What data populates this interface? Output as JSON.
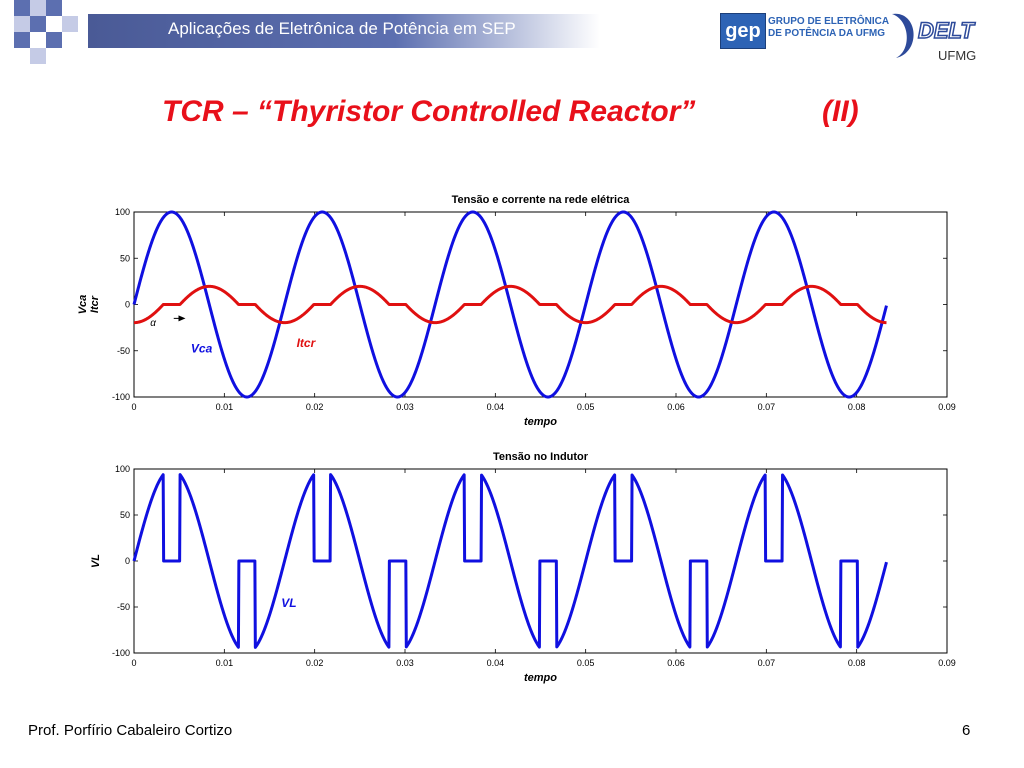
{
  "header": {
    "title": "Aplicações de Eletrônica de Potência em SEP",
    "gep_logo_text": "gep",
    "gep_group_line1": "GRUPO DE ELETRÔNICA",
    "gep_group_line2": "DE POTÊNCIA DA UFMG",
    "delt_logo_text": "DELT",
    "ufmg_text": "UFMG"
  },
  "slide": {
    "title_main": "TCR – “Thyristor Controlled Reactor”",
    "title_part": "(II)"
  },
  "footer": {
    "author": "Prof. Porfírio Cabaleiro Cortizo",
    "page_number": "6"
  },
  "colors": {
    "header_bar": "#5c6fb0",
    "title_red": "#e8101a",
    "series_blue": "#1010e0",
    "series_red": "#e01010"
  },
  "chart_data": [
    {
      "type": "line",
      "title": "Tensão e corrente na rede elétrica",
      "xlabel": "tempo",
      "ylabel_lines": [
        "Vca",
        "Itcr"
      ],
      "xlim": [
        0,
        0.09
      ],
      "ylim": [
        -100,
        100
      ],
      "xticks": [
        "0",
        "0.01",
        "0.02",
        "0.03",
        "0.04",
        "0.05",
        "0.06",
        "0.07",
        "0.08",
        "0.09"
      ],
      "yticks": [
        "100",
        "50",
        "0",
        "-50",
        "-100"
      ],
      "annotations": [
        {
          "text": "α",
          "x": 0.0018,
          "y": -23
        },
        {
          "text": "Vca",
          "x": 0.0063,
          "y": -52
        },
        {
          "text": "Itcr",
          "x": 0.018,
          "y": -46
        }
      ],
      "alpha_arrow": {
        "x_from": 0.0044,
        "x_to": 0.0057,
        "y": -15
      },
      "series": [
        {
          "name": "Vca",
          "kind": "sine",
          "amplitude": 100,
          "frequency_hz": 60,
          "x_start": 0,
          "x_end": 0.0833,
          "color": "#1010e0"
        },
        {
          "name": "Itcr",
          "kind": "tcr_current",
          "amplitude": 40,
          "frequency_hz": 60,
          "firing_angle_deg": 110,
          "x_start": 0,
          "x_end": 0.0833,
          "color": "#e01010"
        }
      ]
    },
    {
      "type": "line",
      "title": "Tensão no Indutor",
      "xlabel": "tempo",
      "ylabel_lines": [
        "VL"
      ],
      "xlim": [
        0,
        0.09
      ],
      "ylim": [
        -100,
        100
      ],
      "xticks": [
        "0",
        "0.01",
        "0.02",
        "0.03",
        "0.04",
        "0.05",
        "0.06",
        "0.07",
        "0.08",
        "0.09"
      ],
      "yticks": [
        "100",
        "50",
        "0",
        "-50",
        "-100"
      ],
      "annotations": [
        {
          "text": "VL",
          "x": 0.0163,
          "y": -50
        }
      ],
      "series": [
        {
          "name": "VL",
          "kind": "tcr_inductor_voltage",
          "amplitude": 100,
          "frequency_hz": 60,
          "firing_angle_deg": 110,
          "x_start": 0,
          "x_end": 0.0833,
          "color": "#1010e0"
        }
      ]
    }
  ]
}
